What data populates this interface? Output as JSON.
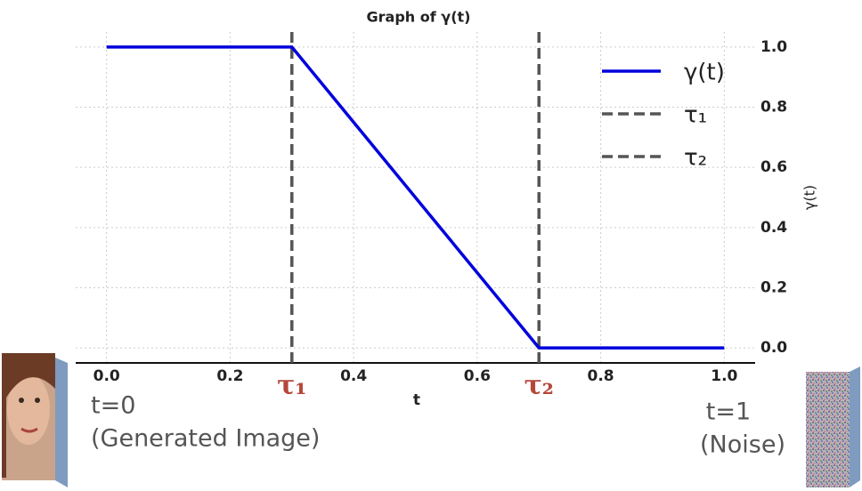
{
  "chart_data": {
    "type": "line",
    "title": "Graph of γ(t)",
    "x_label": "t",
    "y_label": "γ(t)",
    "series": [
      {
        "name": "γ(t)",
        "color": "#0000dd",
        "x": [
          0,
          0.3,
          0.7,
          1.0
        ],
        "values": [
          1,
          1,
          0,
          0
        ]
      }
    ],
    "vlines": [
      {
        "name": "τ₁",
        "x": 0.3,
        "color": "#555555"
      },
      {
        "name": "τ₂",
        "x": 0.7,
        "color": "#555555"
      }
    ],
    "xlim": [
      -0.05,
      1.05
    ],
    "ylim": [
      -0.05,
      1.05
    ],
    "xticks": [
      {
        "value": 0,
        "label": "0.0"
      },
      {
        "value": 0.2,
        "label": "0.2"
      },
      {
        "value": 0.4,
        "label": "0.4"
      },
      {
        "value": 0.6,
        "label": "0.6"
      },
      {
        "value": 0.8,
        "label": "0.8"
      },
      {
        "value": 1.0,
        "label": "1.0"
      }
    ],
    "yticks": [
      {
        "value": 0,
        "label": "0.0"
      },
      {
        "value": 0.2,
        "label": "0.2"
      },
      {
        "value": 0.4,
        "label": "0.4"
      },
      {
        "value": 0.6,
        "label": "0.6"
      },
      {
        "value": 0.8,
        "label": "0.8"
      },
      {
        "value": 1.0,
        "label": "1.0"
      }
    ],
    "grid": true,
    "legend": "upper right",
    "markers": [
      {
        "text": "τ₁",
        "x": 0.3
      },
      {
        "text": "τ₂",
        "x": 0.7
      }
    ],
    "annotations": [
      "t=0",
      "(Generated Image)",
      "t=1",
      "(Noise)"
    ]
  }
}
